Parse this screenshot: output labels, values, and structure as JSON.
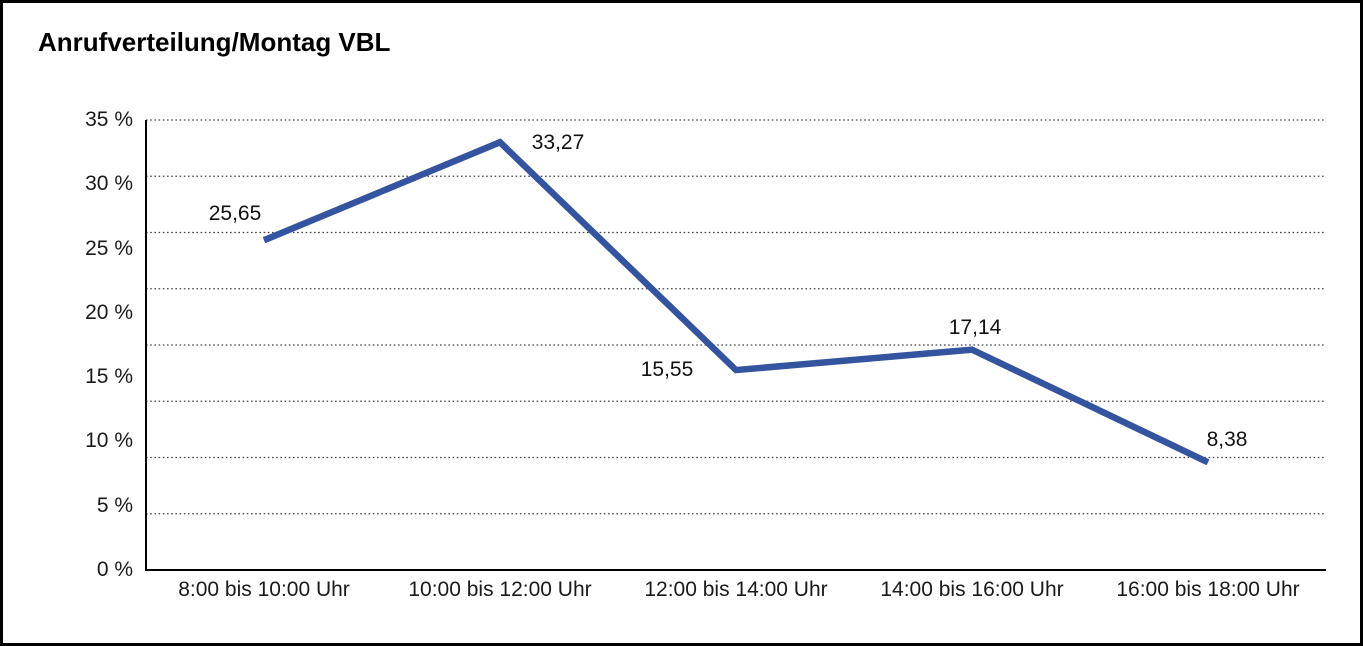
{
  "title": "Anrufverteilung/Montag VBL",
  "chart_data": {
    "type": "line",
    "title": "Anrufverteilung/Montag VBL",
    "categories": [
      "8:00 bis 10:00 Uhr",
      "10:00 bis 12:00 Uhr",
      "12:00 bis 14:00 Uhr",
      "14:00 bis 16:00 Uhr",
      "16:00 bis 18:00 Uhr"
    ],
    "values": [
      25.65,
      33.27,
      15.55,
      17.14,
      8.38
    ],
    "value_labels": [
      "25,65",
      "33,27",
      "15,55",
      "17,14",
      "8,38"
    ],
    "xlabel": "",
    "ylabel": "",
    "y_tick_labels": [
      "35 %",
      "30 %",
      "25 %",
      "20 %",
      "15 %",
      "10 %",
      "5 %",
      "0 %"
    ],
    "ylim": [
      0,
      35
    ],
    "grid": "horizontal-dotted",
    "legend": "none",
    "colors": {
      "line": "#34549F",
      "axis": "#000000",
      "gridline": "#404040",
      "text": "#1a1a1a",
      "background": "#ffffff"
    }
  }
}
